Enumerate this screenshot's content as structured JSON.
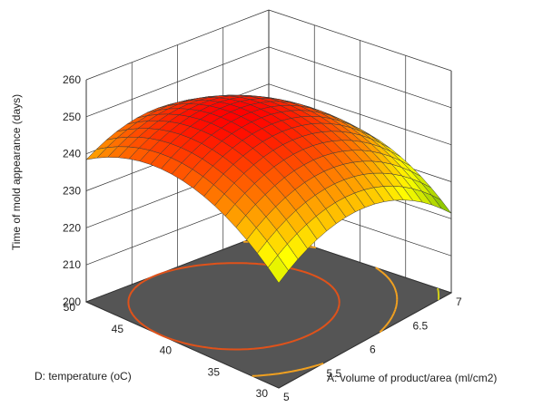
{
  "chart_data": {
    "type": "surface",
    "zlabel": "Time of mold appearance (days)",
    "xlabel": "A: volume of product/area (ml/cm2)",
    "ylabel": "D: temperature (oC)",
    "x_ticks": [
      "5",
      "5.5",
      "6",
      "6.5",
      "7"
    ],
    "y_ticks": [
      "30",
      "35",
      "40",
      "45",
      "50"
    ],
    "z_ticks": [
      "200",
      "210",
      "220",
      "230",
      "240",
      "250",
      "260"
    ],
    "xlim": [
      5,
      7
    ],
    "ylim": [
      30,
      50
    ],
    "zlim": [
      200,
      260
    ],
    "surface_samples": [
      {
        "x": 5,
        "y": 50,
        "z": 238
      },
      {
        "x": 5.8,
        "y": 42,
        "z": 252
      },
      {
        "x": 7,
        "y": 50,
        "z": 232
      },
      {
        "x": 7,
        "y": 30,
        "z": 213
      },
      {
        "x": 5,
        "y": 30,
        "z": 223
      }
    ],
    "floor_contours": "yes",
    "grid": "on",
    "colormap": [
      "#008000",
      "#ffff00",
      "#ff0000"
    ],
    "floor_color": "#555555",
    "contour_colors": [
      "#e0521a",
      "#f0a020",
      "#d2d01a",
      "#88d31a",
      "#2ec41a"
    ]
  }
}
